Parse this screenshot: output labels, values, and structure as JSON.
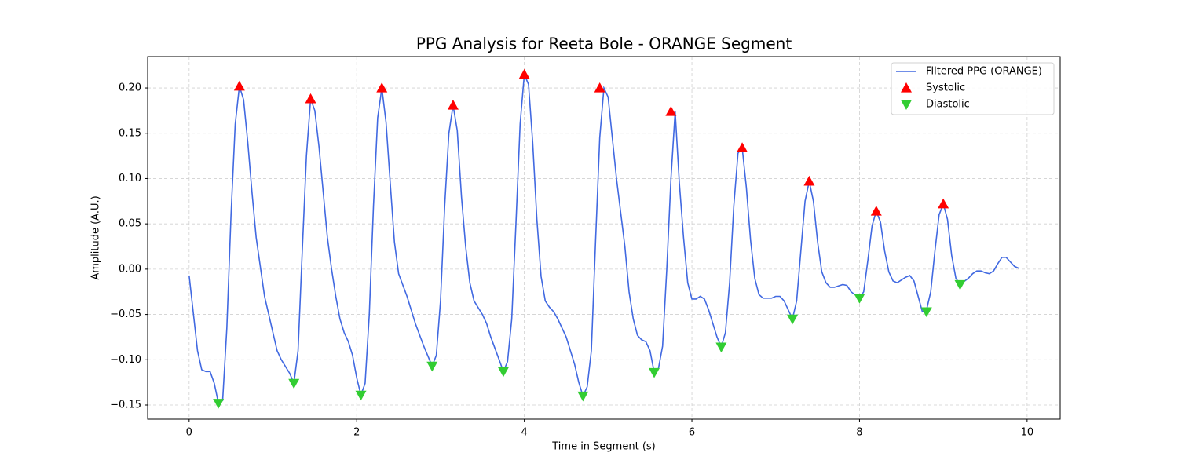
{
  "chart_data": {
    "type": "line",
    "title": "PPG Analysis for Reeta Bole - ORANGE Segment",
    "x_label": "Time in Segment (s)",
    "y_label": "Amplitude (A.U.)",
    "xlim": [
      -0.495,
      10.395
    ],
    "ylim": [
      -0.1656,
      0.2347
    ],
    "xticks": [
      0,
      2,
      4,
      6,
      8,
      10
    ],
    "yticks": [
      {
        "value": -0.15,
        "label": "−0.15"
      },
      {
        "value": -0.1,
        "label": "−0.10"
      },
      {
        "value": -0.05,
        "label": "−0.05"
      },
      {
        "value": 0,
        "label": "0.00"
      },
      {
        "value": 0.05,
        "label": "0.05"
      },
      {
        "value": 0.1,
        "label": "0.10"
      },
      {
        "value": 0.15,
        "label": "0.15"
      },
      {
        "value": 0.2,
        "label": "0.20"
      }
    ],
    "grid": true,
    "legend": "upper right",
    "series": [
      {
        "name": "Filtered PPG (ORANGE)",
        "color": "#4169e1",
        "type": "line",
        "x": [
          0,
          0.1,
          0.15,
          0.2,
          0.25,
          0.3,
          0.35,
          0.4,
          0.45,
          0.5,
          0.55,
          0.6,
          0.65,
          0.7,
          0.75,
          0.8,
          0.9,
          1.0,
          1.05,
          1.1,
          1.2,
          1.25,
          1.3,
          1.35,
          1.4,
          1.45,
          1.5,
          1.55,
          1.6,
          1.65,
          1.7,
          1.75,
          1.8,
          1.85,
          1.9,
          1.95,
          2.0,
          2.05,
          2.1,
          2.15,
          2.2,
          2.25,
          2.3,
          2.35,
          2.4,
          2.45,
          2.5,
          2.6,
          2.7,
          2.8,
          2.9,
          2.95,
          3.0,
          3.05,
          3.1,
          3.15,
          3.2,
          3.25,
          3.3,
          3.35,
          3.4,
          3.5,
          3.55,
          3.6,
          3.7,
          3.75,
          3.8,
          3.85,
          3.9,
          3.95,
          4.0,
          4.05,
          4.1,
          4.15,
          4.2,
          4.25,
          4.3,
          4.35,
          4.4,
          4.5,
          4.6,
          4.65,
          4.7,
          4.75,
          4.8,
          4.85,
          4.9,
          4.95,
          5.0,
          5.05,
          5.1,
          5.2,
          5.25,
          5.3,
          5.35,
          5.4,
          5.45,
          5.5,
          5.55,
          5.6,
          5.65,
          5.7,
          5.75,
          5.8,
          5.85,
          5.9,
          5.95,
          6.0,
          6.05,
          6.1,
          6.15,
          6.2,
          6.3,
          6.35,
          6.4,
          6.45,
          6.5,
          6.55,
          6.6,
          6.65,
          6.7,
          6.75,
          6.8,
          6.85,
          6.9,
          6.95,
          7.0,
          7.05,
          7.1,
          7.15,
          7.2,
          7.25,
          7.3,
          7.35,
          7.4,
          7.45,
          7.5,
          7.55,
          7.6,
          7.65,
          7.7,
          7.8,
          7.85,
          7.9,
          8.0,
          8.05,
          8.1,
          8.15,
          8.2,
          8.25,
          8.3,
          8.35,
          8.4,
          8.45,
          8.5,
          8.55,
          8.6,
          8.65,
          8.7,
          8.75,
          8.8,
          8.85,
          8.9,
          8.95,
          9.0,
          9.05,
          9.1,
          9.15,
          9.2,
          9.3,
          9.35,
          9.4,
          9.45,
          9.5,
          9.55,
          9.6,
          9.65,
          9.7,
          9.75,
          9.8,
          9.85,
          9.9
        ],
        "values": [
          -0.007,
          -0.09,
          -0.111,
          -0.113,
          -0.113,
          -0.126,
          -0.148,
          -0.145,
          -0.065,
          0.06,
          0.16,
          0.202,
          0.187,
          0.14,
          0.085,
          0.035,
          -0.03,
          -0.07,
          -0.09,
          -0.1,
          -0.115,
          -0.126,
          -0.09,
          0.02,
          0.125,
          0.188,
          0.175,
          0.135,
          0.085,
          0.035,
          0.0,
          -0.03,
          -0.055,
          -0.07,
          -0.08,
          -0.095,
          -0.12,
          -0.139,
          -0.126,
          -0.05,
          0.07,
          0.167,
          0.2,
          0.162,
          0.095,
          0.03,
          -0.005,
          -0.03,
          -0.06,
          -0.085,
          -0.107,
          -0.095,
          -0.035,
          0.07,
          0.15,
          0.181,
          0.153,
          0.08,
          0.025,
          -0.015,
          -0.035,
          -0.05,
          -0.06,
          -0.075,
          -0.1,
          -0.113,
          -0.102,
          -0.055,
          0.05,
          0.16,
          0.215,
          0.204,
          0.14,
          0.055,
          -0.008,
          -0.035,
          -0.042,
          -0.047,
          -0.055,
          -0.075,
          -0.105,
          -0.125,
          -0.14,
          -0.13,
          -0.09,
          0.03,
          0.145,
          0.2,
          0.19,
          0.145,
          0.1,
          0.025,
          -0.025,
          -0.055,
          -0.073,
          -0.078,
          -0.08,
          -0.09,
          -0.114,
          -0.11,
          -0.085,
          0.0,
          0.1,
          0.174,
          0.095,
          0.035,
          -0.015,
          -0.033,
          -0.033,
          -0.03,
          -0.033,
          -0.045,
          -0.075,
          -0.086,
          -0.07,
          -0.015,
          0.07,
          0.128,
          0.134,
          0.09,
          0.032,
          -0.01,
          -0.028,
          -0.032,
          -0.032,
          -0.032,
          -0.03,
          -0.03,
          -0.035,
          -0.045,
          -0.055,
          -0.035,
          0.02,
          0.075,
          0.097,
          0.075,
          0.03,
          -0.003,
          -0.015,
          -0.02,
          -0.02,
          -0.017,
          -0.018,
          -0.025,
          -0.032,
          -0.025,
          0.01,
          0.048,
          0.064,
          0.052,
          0.02,
          -0.003,
          -0.013,
          -0.015,
          -0.012,
          -0.009,
          -0.007,
          -0.013,
          -0.03,
          -0.047,
          -0.045,
          -0.025,
          0.02,
          0.06,
          0.072,
          0.055,
          0.015,
          -0.01,
          -0.017,
          -0.01,
          -0.005,
          -0.002,
          -0.002,
          -0.004,
          -0.005,
          -0.002,
          0.006,
          0.013,
          0.013,
          0.008,
          0.003,
          0.001
        ]
      },
      {
        "name": "Systolic",
        "color": "#ff0000",
        "type": "scatter",
        "marker": "triangle-up",
        "x": [
          0.6,
          1.45,
          2.3,
          3.15,
          4.0,
          4.9,
          5.75,
          6.6,
          7.4,
          8.2,
          9.0
        ],
        "values": [
          0.202,
          0.188,
          0.2,
          0.181,
          0.215,
          0.2,
          0.174,
          0.134,
          0.097,
          0.064,
          0.072
        ]
      },
      {
        "name": "Diastolic",
        "color": "#32cd32",
        "type": "scatter",
        "marker": "triangle-down",
        "x": [
          0.35,
          1.25,
          2.05,
          2.9,
          3.75,
          4.7,
          5.55,
          6.35,
          7.2,
          8.0,
          8.8,
          9.2
        ],
        "values": [
          -0.148,
          -0.126,
          -0.139,
          -0.107,
          -0.113,
          -0.14,
          -0.114,
          -0.086,
          -0.055,
          -0.032,
          -0.047,
          -0.017
        ]
      }
    ]
  }
}
